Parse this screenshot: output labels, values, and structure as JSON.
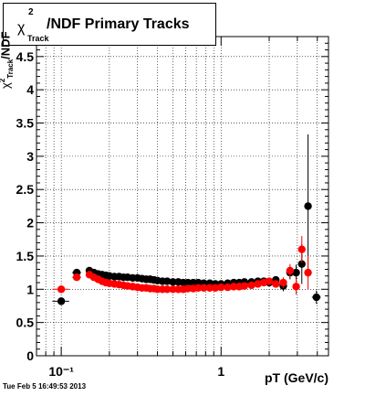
{
  "title": "/NDF  Primary Tracks",
  "title_chi": "χ",
  "title_sup": "2",
  "title_sub": "Track",
  "y_axis_label_chi": "χ",
  "y_axis_label_sup": "2",
  "y_axis_label_sub": "Track",
  "y_axis_label_rest": "/NDF",
  "timestamp": "Tue Feb  5 16:49:53 2013",
  "chart_data": {
    "type": "scatter",
    "x_scale": "log",
    "xlabel": "pT (GeV/c)",
    "ylabel": "χ²Track/NDF",
    "xlim": [
      0.07,
      4.7
    ],
    "ylim": [
      0,
      4.8
    ],
    "grid": true,
    "y_ticks": [
      "0",
      "0.5",
      "1",
      "1.5",
      "2",
      "2.5",
      "3",
      "3.5",
      "4",
      "4.5"
    ],
    "x_tick_labels": [
      {
        "value": 0.1,
        "label": "10⁻¹"
      },
      {
        "value": 1,
        "label": "1"
      }
    ],
    "series": [
      {
        "color": "#000000",
        "points": [
          {
            "x": 0.1,
            "y": 0.82,
            "xerr": 0.012,
            "yerr": 0.05
          },
          {
            "x": 0.125,
            "y": 1.25,
            "xerr": 0.008,
            "yerr": 0.04
          },
          {
            "x": 0.15,
            "y": 1.28
          },
          {
            "x": 0.16,
            "y": 1.25
          },
          {
            "x": 0.17,
            "y": 1.23
          },
          {
            "x": 0.18,
            "y": 1.22
          },
          {
            "x": 0.19,
            "y": 1.21
          },
          {
            "x": 0.2,
            "y": 1.2
          },
          {
            "x": 0.215,
            "y": 1.19
          },
          {
            "x": 0.23,
            "y": 1.19
          },
          {
            "x": 0.245,
            "y": 1.18
          },
          {
            "x": 0.26,
            "y": 1.18
          },
          {
            "x": 0.28,
            "y": 1.17
          },
          {
            "x": 0.3,
            "y": 1.17
          },
          {
            "x": 0.32,
            "y": 1.16
          },
          {
            "x": 0.34,
            "y": 1.15
          },
          {
            "x": 0.36,
            "y": 1.15
          },
          {
            "x": 0.38,
            "y": 1.14
          },
          {
            "x": 0.4,
            "y": 1.13
          },
          {
            "x": 0.43,
            "y": 1.12
          },
          {
            "x": 0.46,
            "y": 1.12
          },
          {
            "x": 0.5,
            "y": 1.11
          },
          {
            "x": 0.54,
            "y": 1.11
          },
          {
            "x": 0.58,
            "y": 1.1
          },
          {
            "x": 0.62,
            "y": 1.1
          },
          {
            "x": 0.67,
            "y": 1.1
          },
          {
            "x": 0.72,
            "y": 1.1
          },
          {
            "x": 0.78,
            "y": 1.09
          },
          {
            "x": 0.85,
            "y": 1.09
          },
          {
            "x": 0.92,
            "y": 1.08
          },
          {
            "x": 1.0,
            "y": 1.08
          },
          {
            "x": 1.1,
            "y": 1.09
          },
          {
            "x": 1.2,
            "y": 1.1
          },
          {
            "x": 1.3,
            "y": 1.1
          },
          {
            "x": 1.4,
            "y": 1.11
          },
          {
            "x": 1.55,
            "y": 1.11
          },
          {
            "x": 1.7,
            "y": 1.12
          },
          {
            "x": 1.85,
            "y": 1.12
          },
          {
            "x": 2.0,
            "y": 1.1,
            "yerr": 0.04
          },
          {
            "x": 2.2,
            "y": 1.14,
            "yerr": 0.05
          },
          {
            "x": 2.45,
            "y": 1.05,
            "yerr": 0.08
          },
          {
            "x": 2.7,
            "y": 1.25,
            "yerr": 0.1
          },
          {
            "x": 2.95,
            "y": 1.25,
            "yerr": 0.12
          },
          {
            "x": 3.2,
            "y": 1.38,
            "yerr": 0.3
          },
          {
            "x": 3.5,
            "y": 2.25,
            "yerr": 1.08
          },
          {
            "x": 3.95,
            "y": 0.88,
            "xerr": 0.25,
            "yerr": 0.1
          }
        ]
      },
      {
        "color": "#ff0000",
        "points": [
          {
            "x": 0.1,
            "y": 1.0,
            "xerr": 0.012,
            "yerr": 0.04
          },
          {
            "x": 0.125,
            "y": 1.18,
            "xerr": 0.008,
            "yerr": 0.04
          },
          {
            "x": 0.15,
            "y": 1.22
          },
          {
            "x": 0.16,
            "y": 1.18
          },
          {
            "x": 0.17,
            "y": 1.15
          },
          {
            "x": 0.18,
            "y": 1.12
          },
          {
            "x": 0.19,
            "y": 1.1
          },
          {
            "x": 0.2,
            "y": 1.09
          },
          {
            "x": 0.215,
            "y": 1.08
          },
          {
            "x": 0.23,
            "y": 1.07
          },
          {
            "x": 0.245,
            "y": 1.06
          },
          {
            "x": 0.26,
            "y": 1.05
          },
          {
            "x": 0.28,
            "y": 1.04
          },
          {
            "x": 0.3,
            "y": 1.03
          },
          {
            "x": 0.32,
            "y": 1.02
          },
          {
            "x": 0.34,
            "y": 1.02
          },
          {
            "x": 0.36,
            "y": 1.01
          },
          {
            "x": 0.38,
            "y": 1.01
          },
          {
            "x": 0.4,
            "y": 1.0
          },
          {
            "x": 0.43,
            "y": 1.0
          },
          {
            "x": 0.46,
            "y": 1.0
          },
          {
            "x": 0.5,
            "y": 1.0
          },
          {
            "x": 0.54,
            "y": 1.0
          },
          {
            "x": 0.58,
            "y": 1.0
          },
          {
            "x": 0.62,
            "y": 1.01
          },
          {
            "x": 0.67,
            "y": 1.01
          },
          {
            "x": 0.72,
            "y": 1.02
          },
          {
            "x": 0.78,
            "y": 1.02
          },
          {
            "x": 0.85,
            "y": 1.02
          },
          {
            "x": 0.92,
            "y": 1.02
          },
          {
            "x": 1.0,
            "y": 1.03
          },
          {
            "x": 1.1,
            "y": 1.03
          },
          {
            "x": 1.2,
            "y": 1.04
          },
          {
            "x": 1.3,
            "y": 1.04
          },
          {
            "x": 1.4,
            "y": 1.05
          },
          {
            "x": 1.55,
            "y": 1.06
          },
          {
            "x": 1.7,
            "y": 1.08
          },
          {
            "x": 1.85,
            "y": 1.1
          },
          {
            "x": 2.0,
            "y": 1.12,
            "yerr": 0.04
          },
          {
            "x": 2.2,
            "y": 1.08,
            "yerr": 0.05
          },
          {
            "x": 2.45,
            "y": 1.1,
            "yerr": 0.08
          },
          {
            "x": 2.7,
            "y": 1.28,
            "yerr": 0.1
          },
          {
            "x": 2.95,
            "y": 1.04,
            "yerr": 0.12
          },
          {
            "x": 3.2,
            "y": 1.6,
            "yerr": 0.2
          },
          {
            "x": 3.5,
            "y": 1.25,
            "yerr": 0.25
          }
        ]
      }
    ]
  }
}
